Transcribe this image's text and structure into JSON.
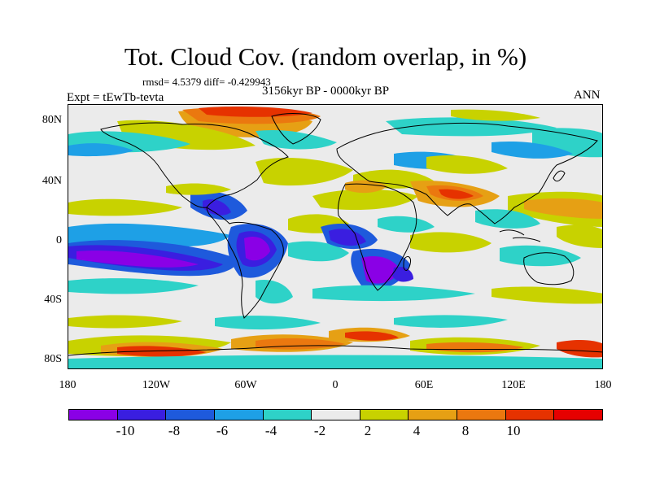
{
  "title": "Tot. Cloud Cov. (random overlap, in %)",
  "stats": "rmsd= 4.5379 diff= -0.429943",
  "expt": "Expt = tEwTb-tevta",
  "period": "3156kyr BP - 0000kyr BP",
  "season": "ANN",
  "lat_labels": [
    "80N",
    "40N",
    "0",
    "40S",
    "80S"
  ],
  "lon_labels": [
    "180",
    "120W",
    "60W",
    "0",
    "60E",
    "120E",
    "180"
  ],
  "colorbar": {
    "colors": [
      "#8a00e6",
      "#3a1ee0",
      "#1e5adc",
      "#1ea0e6",
      "#2ed2c8",
      "#ebebeb",
      "#c8d200",
      "#e6a014",
      "#eb780f",
      "#e63200",
      "#e60000"
    ],
    "labels": [
      "-10",
      "-8",
      "-6",
      "-4",
      "-2",
      "2",
      "4",
      "8",
      "10"
    ]
  }
}
